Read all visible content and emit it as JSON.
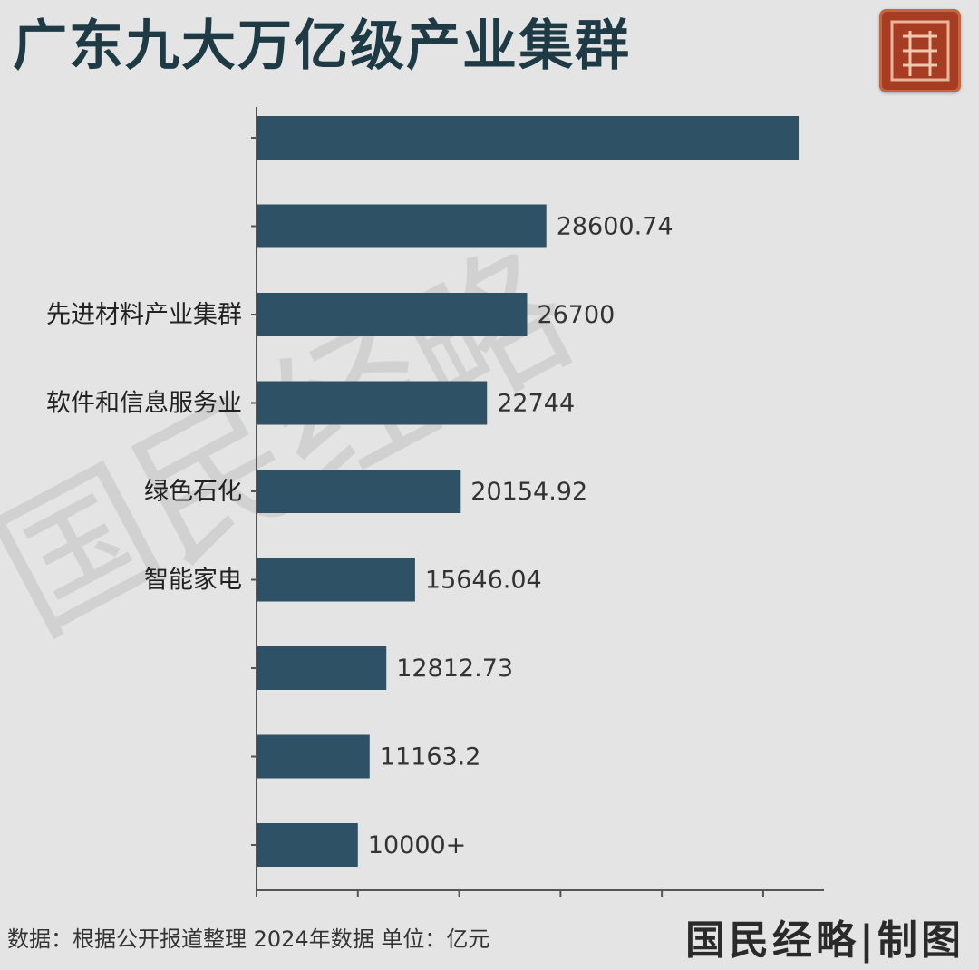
{
  "header": {
    "title": "广东九大万亿级产业集群"
  },
  "footer": {
    "source_note": "数据：根据公开报道整理 2024年数据 单位：亿元",
    "credit": "国民经略|制图"
  },
  "watermark": {
    "text": "国民经略"
  },
  "seal": {
    "icon": "seal-stamp-icon",
    "color": "#a63c22"
  },
  "colors": {
    "bar": "#2f5166",
    "axis": "#555555",
    "background": "#e4e4e4"
  },
  "chart_data": {
    "type": "bar",
    "orientation": "horizontal",
    "categories": [
      "",
      "",
      "先进材料产业集群",
      "软件和信息服务业",
      "绿色石化",
      "智能家电",
      "",
      "",
      ""
    ],
    "values": [
      53500,
      28600.74,
      26700,
      22744,
      20154.92,
      15646.04,
      12812.73,
      11163.2,
      10000
    ],
    "value_labels": [
      "",
      "28600.74",
      "26700",
      "22744",
      "20154.92",
      "15646.04",
      "12812.73",
      "11163.2",
      "10000+"
    ],
    "xlim": [
      0,
      56000
    ],
    "xticks": [
      0,
      10000,
      20000,
      30000,
      40000,
      50000
    ],
    "grid": false,
    "legend": "none",
    "title": "",
    "xlabel": "",
    "ylabel": ""
  }
}
